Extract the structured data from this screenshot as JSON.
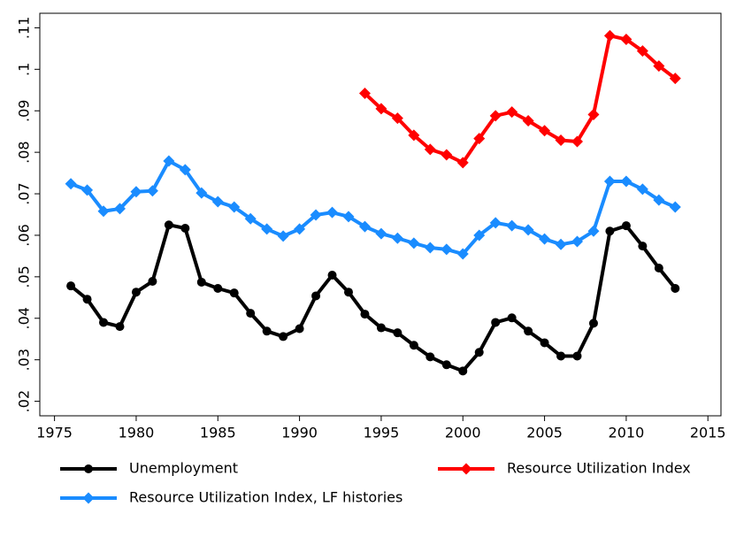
{
  "chart_data": {
    "type": "line",
    "x": [
      1976,
      1977,
      1978,
      1979,
      1980,
      1981,
      1982,
      1983,
      1984,
      1985,
      1986,
      1987,
      1988,
      1989,
      1990,
      1991,
      1992,
      1993,
      1994,
      1995,
      1996,
      1997,
      1998,
      1999,
      2000,
      2001,
      2002,
      2003,
      2004,
      2005,
      2006,
      2007,
      2008,
      2009,
      2010,
      2011,
      2012,
      2013
    ],
    "series": [
      {
        "name": "Unemployment",
        "color": "#000000",
        "marker": "circle",
        "values": [
          0.0478,
          0.0446,
          0.039,
          0.038,
          0.0463,
          0.0489,
          0.0625,
          0.0617,
          0.0487,
          0.0472,
          0.0461,
          0.0412,
          0.0369,
          0.0356,
          0.0375,
          0.0454,
          0.0504,
          0.0463,
          0.041,
          0.0377,
          0.0365,
          0.0335,
          0.0307,
          0.0288,
          0.0273,
          0.0318,
          0.039,
          0.0401,
          0.0369,
          0.0341,
          0.0309,
          0.0309,
          0.0388,
          0.061,
          0.0623,
          0.0574,
          0.0521,
          0.0472
        ]
      },
      {
        "name": "Resource Utilization Index",
        "color": "#ff0000",
        "marker": "diamond",
        "values": [
          null,
          null,
          null,
          null,
          null,
          null,
          null,
          null,
          null,
          null,
          null,
          null,
          null,
          null,
          null,
          null,
          null,
          null,
          0.0942,
          0.0905,
          0.0882,
          0.0841,
          0.0807,
          0.0794,
          0.0775,
          0.0833,
          0.0888,
          0.0897,
          0.0876,
          0.0852,
          0.0829,
          0.0826,
          0.0891,
          0.1081,
          0.1072,
          0.1044,
          0.1008,
          0.0978
        ]
      },
      {
        "name": "Resource Utilization Index, LF histories",
        "color": "#1a8cff",
        "marker": "diamond",
        "values": [
          0.0724,
          0.0709,
          0.0658,
          0.0664,
          0.0705,
          0.0707,
          0.0779,
          0.0758,
          0.0702,
          0.0681,
          0.0668,
          0.064,
          0.0615,
          0.0598,
          0.0615,
          0.0649,
          0.0655,
          0.0645,
          0.0621,
          0.0604,
          0.0593,
          0.0581,
          0.057,
          0.0566,
          0.0555,
          0.06,
          0.063,
          0.0623,
          0.0613,
          0.0591,
          0.0578,
          0.0585,
          0.061,
          0.073,
          0.073,
          0.0711,
          0.0685,
          0.0668
        ]
      }
    ],
    "xlim": [
      1974.1,
      2015.8
    ],
    "xticks": [
      1975,
      1980,
      1985,
      1990,
      1995,
      2000,
      2005,
      2010,
      2015
    ],
    "ylim": [
      0.0165,
      0.1135
    ],
    "yticks": [
      {
        "value": 0.02,
        "label": ".02"
      },
      {
        "value": 0.03,
        "label": ".03"
      },
      {
        "value": 0.04,
        "label": ".04"
      },
      {
        "value": 0.05,
        "label": ".05"
      },
      {
        "value": 0.06,
        "label": ".06"
      },
      {
        "value": 0.07,
        "label": ".07"
      },
      {
        "value": 0.08,
        "label": ".08"
      },
      {
        "value": 0.09,
        "label": ".09"
      },
      {
        "value": 0.1,
        "label": ".1"
      },
      {
        "value": 0.11,
        "label": ".11"
      }
    ],
    "grid": false
  }
}
